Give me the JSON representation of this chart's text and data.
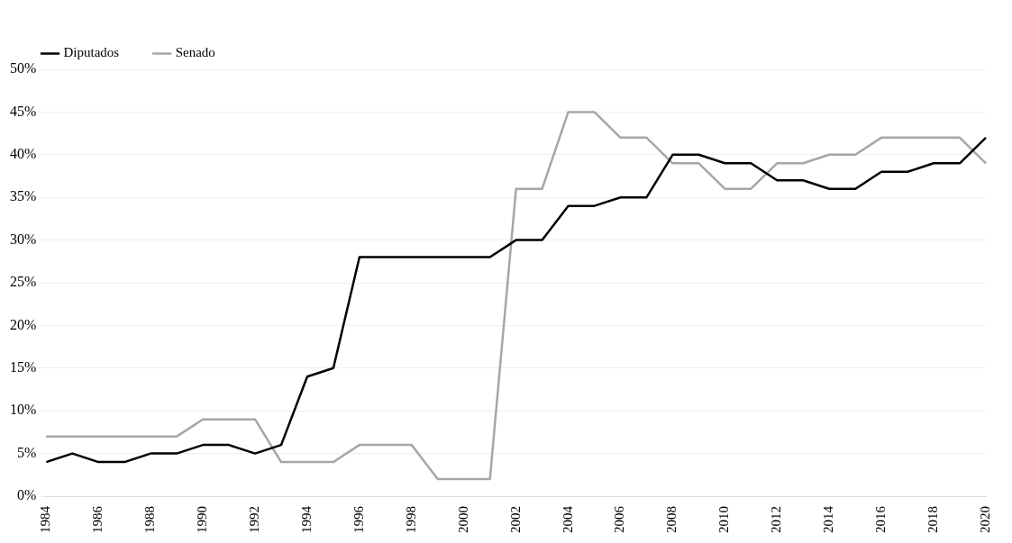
{
  "chart_data": {
    "type": "line",
    "categories": [
      "1984",
      null,
      "1986",
      null,
      "1988",
      null,
      "1990",
      null,
      "1992",
      null,
      "1994",
      null,
      "1996",
      null,
      "1998",
      null,
      "2000",
      null,
      "2002",
      null,
      "2004",
      null,
      "2006",
      null,
      "2008",
      null,
      "2010",
      null,
      "2012",
      null,
      "2014",
      null,
      "2016",
      null,
      "2018",
      null,
      "2020"
    ],
    "series": [
      {
        "name": "Diputados",
        "color": "#000000",
        "values": [
          4,
          5,
          4,
          4,
          5,
          5,
          6,
          6,
          5,
          6,
          14,
          15,
          28,
          28,
          28,
          28,
          28,
          28,
          30,
          30,
          34,
          34,
          35,
          35,
          40,
          40,
          39,
          39,
          37,
          37,
          36,
          36,
          38,
          38,
          39,
          39,
          42
        ]
      },
      {
        "name": "Senado",
        "color": "#a6a6a6",
        "values": [
          7,
          7,
          7,
          7,
          7,
          7,
          9,
          9,
          9,
          4,
          4,
          4,
          6,
          6,
          6,
          2,
          2,
          2,
          36,
          36,
          45,
          45,
          42,
          42,
          39,
          39,
          36,
          36,
          39,
          39,
          40,
          40,
          42,
          42,
          42,
          42,
          39
        ]
      }
    ],
    "ylim": [
      0,
      50
    ],
    "yticks": [
      {
        "value": 0,
        "label": "0%"
      },
      {
        "value": 5,
        "label": "5%"
      },
      {
        "value": 10,
        "label": "10%"
      },
      {
        "value": 15,
        "label": "15%"
      },
      {
        "value": 20,
        "label": "20%"
      },
      {
        "value": 25,
        "label": "25%"
      },
      {
        "value": 30,
        "label": "30%"
      },
      {
        "value": 35,
        "label": "35%"
      },
      {
        "value": 40,
        "label": "40%"
      },
      {
        "value": 45,
        "label": "45%"
      },
      {
        "value": 50,
        "label": "50%"
      }
    ],
    "grid": "y",
    "legend": "top left",
    "marker": "none",
    "line_style": "solid"
  }
}
